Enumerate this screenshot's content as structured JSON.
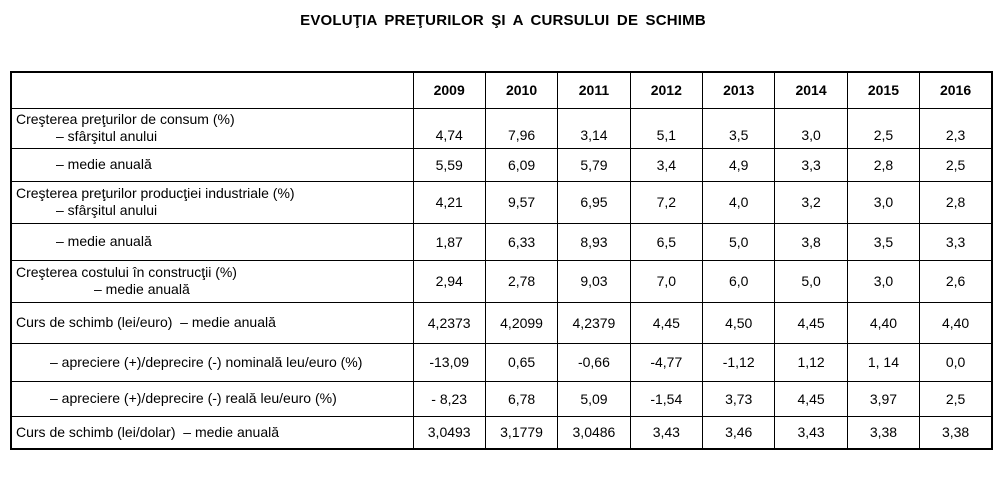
{
  "title": "EVOLUŢIA PREŢURILOR ŞI A CURSULUI DE SCHIMB",
  "table": {
    "years": [
      "2009",
      "2010",
      "2011",
      "2012",
      "2013",
      "2014",
      "2015",
      "2016"
    ],
    "rows": [
      {
        "label1": "Creşterea preţurilor de consum (%)",
        "label2": "– sfârşitul anului",
        "values": [
          "4,74",
          "7,96",
          "3,14",
          "5,1",
          "3,5",
          "3,0",
          "2,5",
          "2,3"
        ]
      },
      {
        "label1": "– medie anuală",
        "values": [
          "5,59",
          "6,09",
          "5,79",
          "3,4",
          "4,9",
          "3,3",
          "2,8",
          "2,5"
        ]
      },
      {
        "label1": "Creşterea preţurilor producţiei industriale (%)",
        "label2": "– sfârşitul anului",
        "values": [
          "4,21",
          "9,57",
          "6,95",
          "7,2",
          "4,0",
          "3,2",
          "3,0",
          "2,8"
        ]
      },
      {
        "label1": "– medie anuală",
        "values": [
          "1,87",
          "6,33",
          "8,93",
          "6,5",
          "5,0",
          "3,8",
          "3,5",
          "3,3"
        ]
      },
      {
        "label1": "Creşterea costului în construcţii (%)",
        "label2": "– medie anuală",
        "values": [
          "2,94",
          "2,78",
          "9,03",
          "7,0",
          "6,0",
          "5,0",
          "3,0",
          "2,6"
        ]
      },
      {
        "label1": "Curs de schimb (lei/euro)  – medie anuală",
        "values": [
          "4,2373",
          "4,2099",
          "4,2379",
          "4,45",
          "4,50",
          "4,45",
          "4,40",
          "4,40"
        ]
      },
      {
        "label1": "– apreciere (+)/deprecire (-) nominală leu/euro (%)",
        "values": [
          "-13,09",
          "0,65",
          "-0,66",
          "-4,77",
          "-1,12",
          "1,12",
          "1, 14",
          "0,0"
        ]
      },
      {
        "label1": "– apreciere (+)/deprecire (-) reală leu/euro (%)",
        "values": [
          "- 8,23",
          "6,78",
          "5,09",
          "-1,54",
          "3,73",
          "4,45",
          "3,97",
          "2,5"
        ]
      },
      {
        "label1": "Curs de schimb (lei/dolar)  – medie anuală",
        "values": [
          "3,0493",
          "3,1779",
          "3,0486",
          "3,43",
          "3,46",
          "3,43",
          "3,38",
          "3,38"
        ]
      }
    ]
  }
}
